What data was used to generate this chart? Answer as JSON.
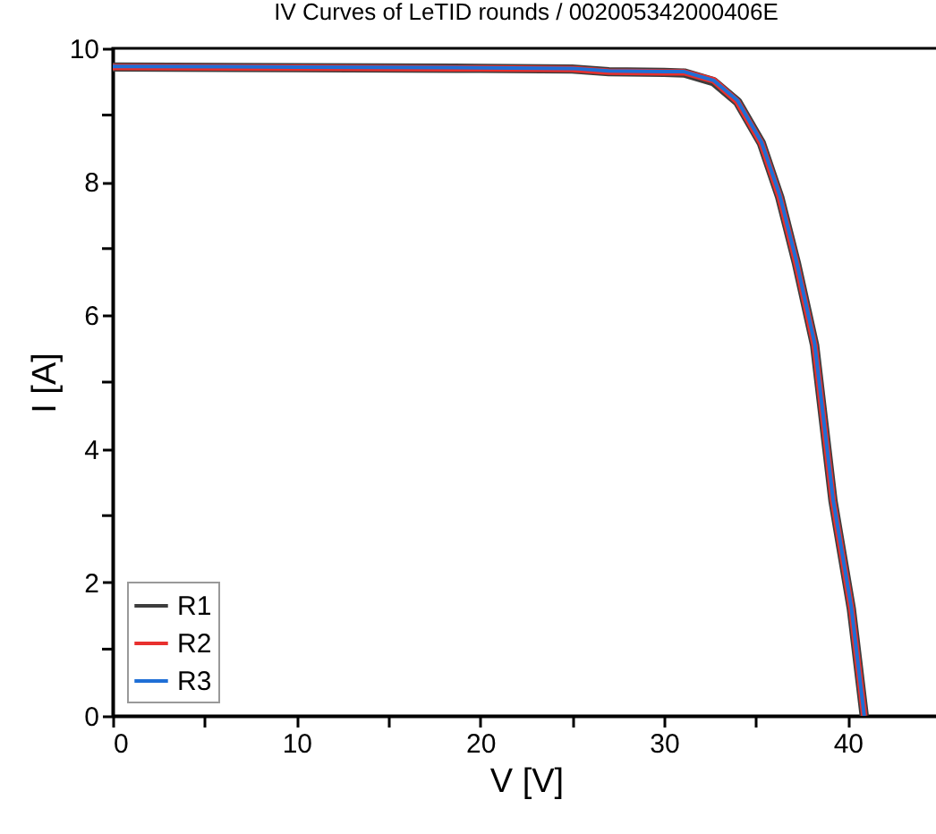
{
  "chart_data": {
    "type": "line",
    "title": "IV Curves of LeTID rounds / 002005342000406E",
    "xlabel": "V [V]",
    "ylabel": "I [A]",
    "xlim": [
      0,
      45
    ],
    "ylim": [
      0,
      10
    ],
    "xticks": [
      0,
      {
        "value": 5,
        "label": null
      },
      10,
      {
        "value": 15,
        "label": null
      },
      20,
      {
        "value": 25,
        "label": null
      },
      30,
      {
        "value": 35,
        "label": null
      },
      40
    ],
    "yticks": [
      0,
      {
        "value": 1,
        "label": null
      },
      2,
      {
        "value": 3,
        "label": null
      },
      4,
      {
        "value": 5,
        "label": null
      },
      6,
      {
        "value": 7,
        "label": null
      },
      8,
      {
        "value": 9,
        "label": null
      },
      10
    ],
    "x": [
      0,
      10,
      20,
      25,
      27,
      30,
      31.1,
      32.7,
      34.0,
      35.3,
      36.3,
      37.2,
      38.2,
      39.2,
      40.2,
      40.9
    ],
    "series": [
      {
        "name": "R1",
        "color": "#3d3d3d",
        "values": [
          9.72,
          9.71,
          9.7,
          9.69,
          9.65,
          9.64,
          9.63,
          9.5,
          9.2,
          8.58,
          7.77,
          6.79,
          5.55,
          3.22,
          1.6,
          0
        ]
      },
      {
        "name": "R2",
        "color": "#e8302e",
        "values": [
          9.72,
          9.71,
          9.7,
          9.69,
          9.65,
          9.64,
          9.64,
          9.52,
          9.2,
          8.58,
          7.77,
          6.79,
          5.55,
          3.22,
          1.6,
          0
        ]
      },
      {
        "name": "R3",
        "color": "#1f6fd6",
        "values": [
          9.73,
          9.72,
          9.71,
          9.7,
          9.66,
          9.65,
          9.65,
          9.52,
          9.22,
          8.6,
          7.8,
          6.82,
          5.58,
          3.25,
          1.62,
          0
        ]
      }
    ],
    "legend": "bottom left",
    "grid": false,
    "line_style": "solid",
    "marker": "none"
  }
}
